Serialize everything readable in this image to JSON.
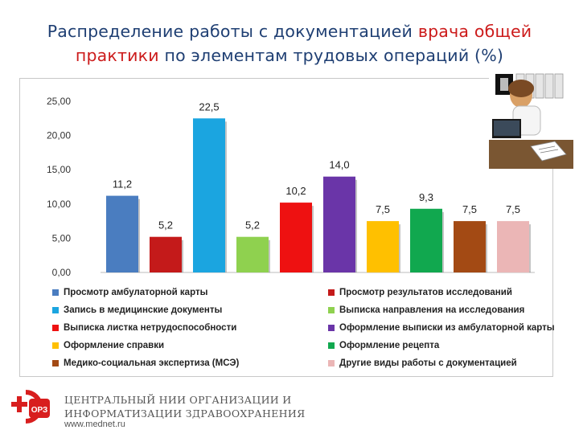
{
  "title": {
    "part1": "Распределение работы с документацией ",
    "part2": "врача общей",
    "part3": "практики",
    "part4": " по элементам трудовых операций (%)"
  },
  "colors": {
    "title_blue": "#1f3f73",
    "title_red": "#cc1b1b"
  },
  "chart_data": {
    "type": "bar",
    "title": "Распределение работы с документацией врача общей практики по элементам трудовых операций (%)",
    "ylim": [
      0,
      25
    ],
    "yticks": [
      "0,00",
      "5,00",
      "10,00",
      "15,00",
      "20,00",
      "25,00"
    ],
    "ytick_values": [
      0,
      5,
      10,
      15,
      20,
      25
    ],
    "grid": false,
    "legend_position": "bottom",
    "series": [
      {
        "name": "Просмотр амбулаторной карты",
        "value": 11.2,
        "label": "11,2",
        "color": "#4a7dc0"
      },
      {
        "name": "Просмотр результатов исследований",
        "value": 5.2,
        "label": "5,2",
        "color": "#c41a1a"
      },
      {
        "name": "Запись в медицинские документы",
        "value": 22.5,
        "label": "22,5",
        "color": "#1ba5e0"
      },
      {
        "name": "Выписка направления на исследования",
        "value": 5.2,
        "label": "5,2",
        "color": "#8fd14f"
      },
      {
        "name": "Выписка листка нетрудоспособности",
        "value": 10.2,
        "label": "10,2",
        "color": "#ee1111"
      },
      {
        "name": "Оформление выписки из амбулаторной карты",
        "value": 14.0,
        "label": "14,0",
        "color": "#6a35a8"
      },
      {
        "name": "Оформление справки",
        "value": 7.5,
        "label": "7,5",
        "color": "#ffc000"
      },
      {
        "name": "Оформление рецепта",
        "value": 9.3,
        "label": "9,3",
        "color": "#11a84f"
      },
      {
        "name": "Медико-социальная экспертиза (МСЭ)",
        "value": 7.5,
        "label": "7,5",
        "color": "#a34a14"
      },
      {
        "name": "Другие виды работы с документацией",
        "value": 7.5,
        "label": "7,5",
        "color": "#ebb6b6"
      }
    ]
  },
  "footer": {
    "org_line1": "ЦЕНТРАЛЬНЫЙ НИИ ОРГАНИЗАЦИИ И",
    "org_line2": "ИНФОРМАТИЗАЦИИ ЗДРАВООХРАНЕНИЯ",
    "site": "www.mednet.ru",
    "logo_text": "ОРЗ"
  }
}
